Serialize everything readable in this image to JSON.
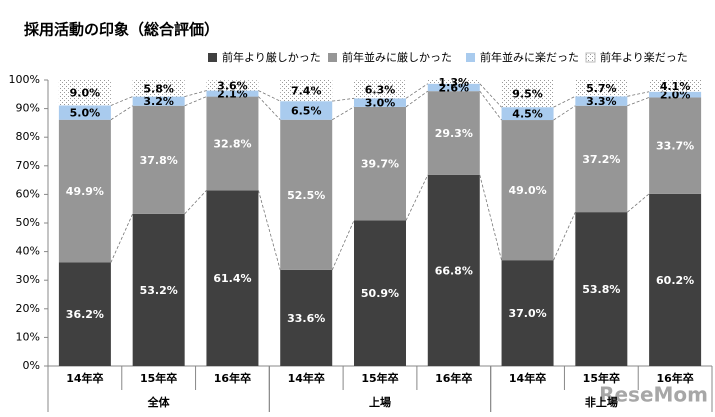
{
  "chart_data": {
    "type": "stacked_bar_100",
    "title": "採用活動の印象（総合評価）",
    "categories": [
      "14年卒",
      "15年卒",
      "16年卒",
      "14年卒",
      "15年卒",
      "16年卒",
      "14年卒",
      "15年卒",
      "16年卒"
    ],
    "groups": [
      {
        "name": "全体",
        "size": 3
      },
      {
        "name": "上場",
        "size": 3
      },
      {
        "name": "非上場",
        "size": 3
      }
    ],
    "series": [
      {
        "name": "前年より厳しかった",
        "color": "#404040",
        "values": [
          36.2,
          53.2,
          61.4,
          33.6,
          50.9,
          66.8,
          37.0,
          53.8,
          60.2
        ],
        "value_labels": [
          "36.2%",
          "53.2%",
          "61.4%",
          "33.6%",
          "50.9%",
          "66.8%",
          "37.0%",
          "53.8%",
          "60.2%"
        ]
      },
      {
        "name": "前年並みに厳しかった",
        "color": "#969696",
        "values": [
          49.9,
          37.8,
          32.8,
          52.5,
          39.7,
          29.3,
          49.0,
          37.2,
          33.7
        ],
        "value_labels": [
          "49.9%",
          "37.8%",
          "32.8%",
          "52.5%",
          "39.7%",
          "29.3%",
          "49.0%",
          "37.2%",
          "33.7%"
        ]
      },
      {
        "name": "前年並みに楽だった",
        "color": "#a9cbee",
        "values": [
          5.0,
          3.2,
          2.1,
          6.5,
          3.0,
          2.6,
          4.5,
          3.3,
          2.0
        ],
        "value_labels": [
          "5.0%",
          "3.2%",
          "2.1%",
          "6.5%",
          "3.0%",
          "2.6%",
          "4.5%",
          "3.3%",
          "2.0%"
        ]
      },
      {
        "name": "前年より楽だった",
        "color": "#9a9a9a",
        "pattern": "dots",
        "values": [
          9.0,
          5.8,
          3.6,
          7.4,
          6.3,
          1.3,
          9.5,
          5.7,
          4.1
        ],
        "value_labels": [
          "9.0%",
          "5.8%",
          "3.6%",
          "7.4%",
          "6.3%",
          "1.3%",
          "9.5%",
          "5.7%",
          "4.1%"
        ]
      }
    ],
    "ylim": [
      0,
      100
    ],
    "yticks": [
      {
        "value": 0,
        "label": "0%"
      },
      {
        "value": 10,
        "label": "10%"
      },
      {
        "value": 20,
        "label": "20%"
      },
      {
        "value": 30,
        "label": "30%"
      },
      {
        "value": 40,
        "label": "40%"
      },
      {
        "value": 50,
        "label": "50%"
      },
      {
        "value": 60,
        "label": "60%"
      },
      {
        "value": 70,
        "label": "70%"
      },
      {
        "value": 80,
        "label": "80%"
      },
      {
        "value": 90,
        "label": "90%"
      },
      {
        "value": 100,
        "label": "100%"
      }
    ],
    "legend": "top-right",
    "connectors": true,
    "watermark": "ReseMom"
  }
}
